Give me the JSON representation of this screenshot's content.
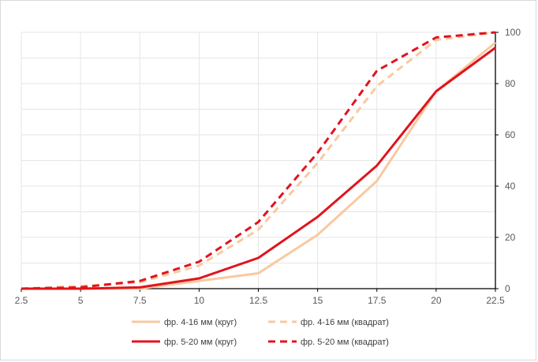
{
  "chart_data": {
    "type": "line",
    "title": "",
    "xlabel": "",
    "ylabel": "",
    "x": [
      2.5,
      5,
      7.5,
      10,
      12.5,
      15,
      17.5,
      20,
      22.5
    ],
    "xlim": [
      2.5,
      22.5
    ],
    "ylim": [
      0,
      100
    ],
    "x_ticks": [
      "2.5",
      "5",
      "7.5",
      "10",
      "12.5",
      "15",
      "17.5",
      "20",
      "22.5"
    ],
    "y_ticks": [
      "0",
      "20",
      "40",
      "60",
      "80",
      "100"
    ],
    "grid": true,
    "y_axis_side": "right",
    "legend_position": "bottom",
    "series": [
      {
        "name": "фр. 4-16 мм (круг)",
        "color": "#f8c9a0",
        "dashed": false,
        "values": [
          0,
          0,
          0,
          3,
          6,
          21,
          42,
          77,
          96
        ]
      },
      {
        "name": "фр.  4-16 мм (квадрат)",
        "color": "#f8c9a0",
        "dashed": true,
        "values": [
          0,
          1,
          2.5,
          9,
          23,
          49,
          79,
          97,
          100
        ]
      },
      {
        "name": "фр.  5-20 мм (круг)",
        "color": "#e0141e",
        "dashed": false,
        "values": [
          0,
          0,
          0.5,
          4,
          12,
          28,
          48,
          77,
          94
        ]
      },
      {
        "name": "фр.  5-20 мм (квадрат)",
        "color": "#e0141e",
        "dashed": true,
        "values": [
          0,
          0.5,
          3,
          10.5,
          26,
          53,
          85,
          98,
          100
        ]
      }
    ]
  }
}
